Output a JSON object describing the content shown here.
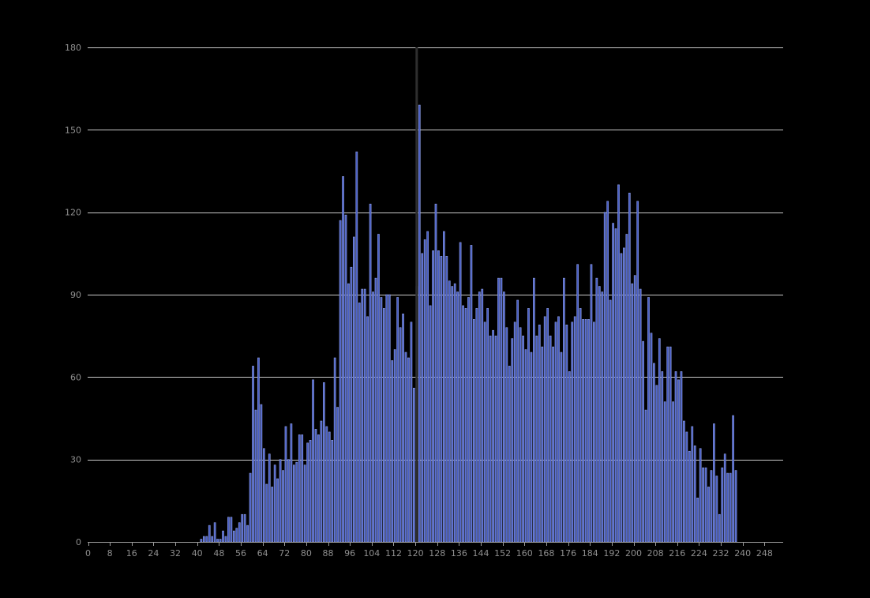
{
  "colors": {
    "background": "#000000",
    "bar_fill": "#4a5fc4",
    "bar_stroke": "#8fa0ea",
    "grid": "#c8c8c8",
    "axis": "#9a9a9a",
    "tick_text": "#8f8f8f",
    "cursor_line": "#2e2e2e"
  },
  "chart_data": {
    "type": "bar",
    "title": "",
    "xlabel": "",
    "ylabel": "",
    "x_start": 0,
    "bin_width": 1,
    "xlim": [
      0,
      255
    ],
    "ylim": [
      0,
      180
    ],
    "grid": true,
    "legend": "none",
    "y_ticks": [
      0,
      30,
      60,
      90,
      120,
      150,
      180
    ],
    "x_ticks": [
      0,
      8,
      16,
      24,
      32,
      40,
      48,
      56,
      64,
      72,
      80,
      88,
      96,
      104,
      112,
      120,
      128,
      136,
      144,
      152,
      160,
      168,
      176,
      184,
      192,
      200,
      208,
      216,
      224,
      232,
      240,
      248
    ],
    "cursor_x": 120,
    "values": [
      0,
      0,
      0,
      0,
      0,
      0,
      0,
      0,
      0,
      0,
      0,
      0,
      0,
      0,
      0,
      0,
      0,
      0,
      0,
      0,
      0,
      0,
      0,
      0,
      0,
      0,
      0,
      0,
      0,
      0,
      0,
      0,
      0,
      0,
      0,
      0,
      0,
      0,
      0,
      0,
      0,
      1,
      2,
      2,
      6,
      2,
      7,
      1,
      1,
      4,
      2,
      9,
      9,
      4,
      5,
      7,
      10,
      10,
      6,
      25,
      64,
      48,
      67,
      50,
      34,
      21,
      32,
      20,
      28,
      23,
      30,
      26,
      42,
      30,
      43,
      28,
      29,
      39,
      39,
      28,
      36,
      37,
      59,
      41,
      39,
      44,
      58,
      42,
      40,
      37,
      67,
      49,
      117,
      133,
      119,
      94,
      100,
      111,
      142,
      87,
      92,
      92,
      82,
      123,
      91,
      96,
      112,
      89,
      85,
      90,
      90,
      66,
      70,
      89,
      78,
      83,
      69,
      67,
      80,
      56,
      93,
      159,
      105,
      110,
      113,
      86,
      106,
      123,
      106,
      104,
      113,
      104,
      95,
      93,
      94,
      91,
      109,
      86,
      85,
      89,
      108,
      81,
      85,
      91,
      92,
      80,
      85,
      75,
      77,
      75,
      96,
      96,
      91,
      78,
      64,
      74,
      80,
      88,
      78,
      75,
      70,
      85,
      69,
      96,
      75,
      79,
      71,
      82,
      85,
      75,
      71,
      80,
      82,
      69,
      96,
      79,
      62,
      80,
      82,
      101,
      85,
      81,
      81,
      81,
      101,
      80,
      96,
      93,
      91,
      120,
      124,
      88,
      116,
      114,
      130,
      105,
      107,
      112,
      127,
      94,
      97,
      124,
      92,
      73,
      48,
      89,
      76,
      65,
      57,
      74,
      62,
      51,
      71,
      71,
      51,
      62,
      59,
      62,
      44,
      40,
      33,
      42,
      35,
      16,
      34,
      27,
      27,
      20,
      26,
      43,
      24,
      10,
      27,
      32,
      25,
      25,
      46,
      26,
      0,
      0,
      0,
      0,
      0,
      0,
      0,
      0,
      0,
      0,
      0,
      0,
      0,
      0,
      0,
      0,
      0,
      0
    ]
  }
}
